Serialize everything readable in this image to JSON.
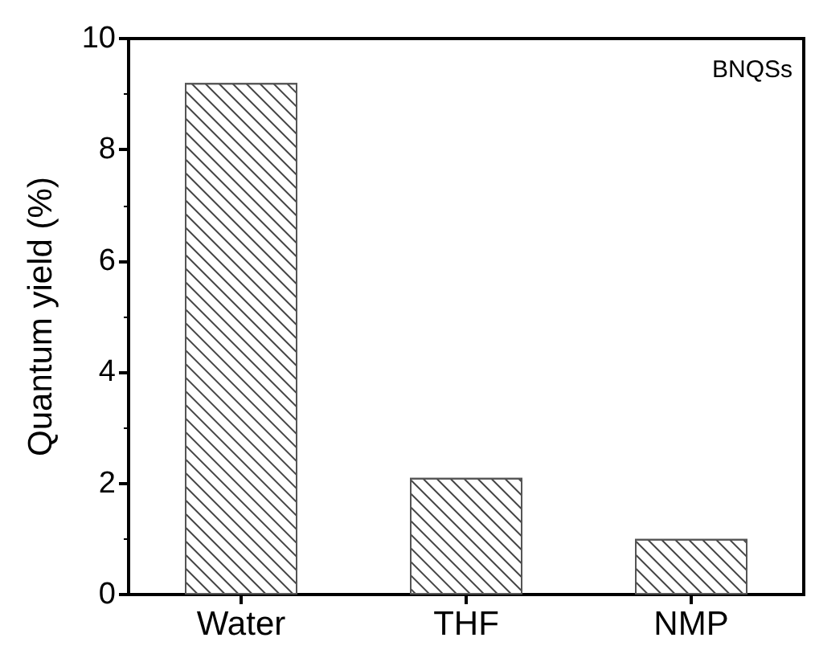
{
  "chart_data": {
    "type": "bar",
    "ylabel": "Quantum yield (%)",
    "annotations": [
      "BNQSs"
    ],
    "categories": [
      "Water",
      "THF",
      "NMP"
    ],
    "values": [
      9.2,
      2.1,
      1.0
    ],
    "color": "#ffffff",
    "ylim": [
      0,
      10
    ],
    "yticks": [
      0,
      2,
      4,
      6,
      8,
      10
    ],
    "grid": false
  }
}
